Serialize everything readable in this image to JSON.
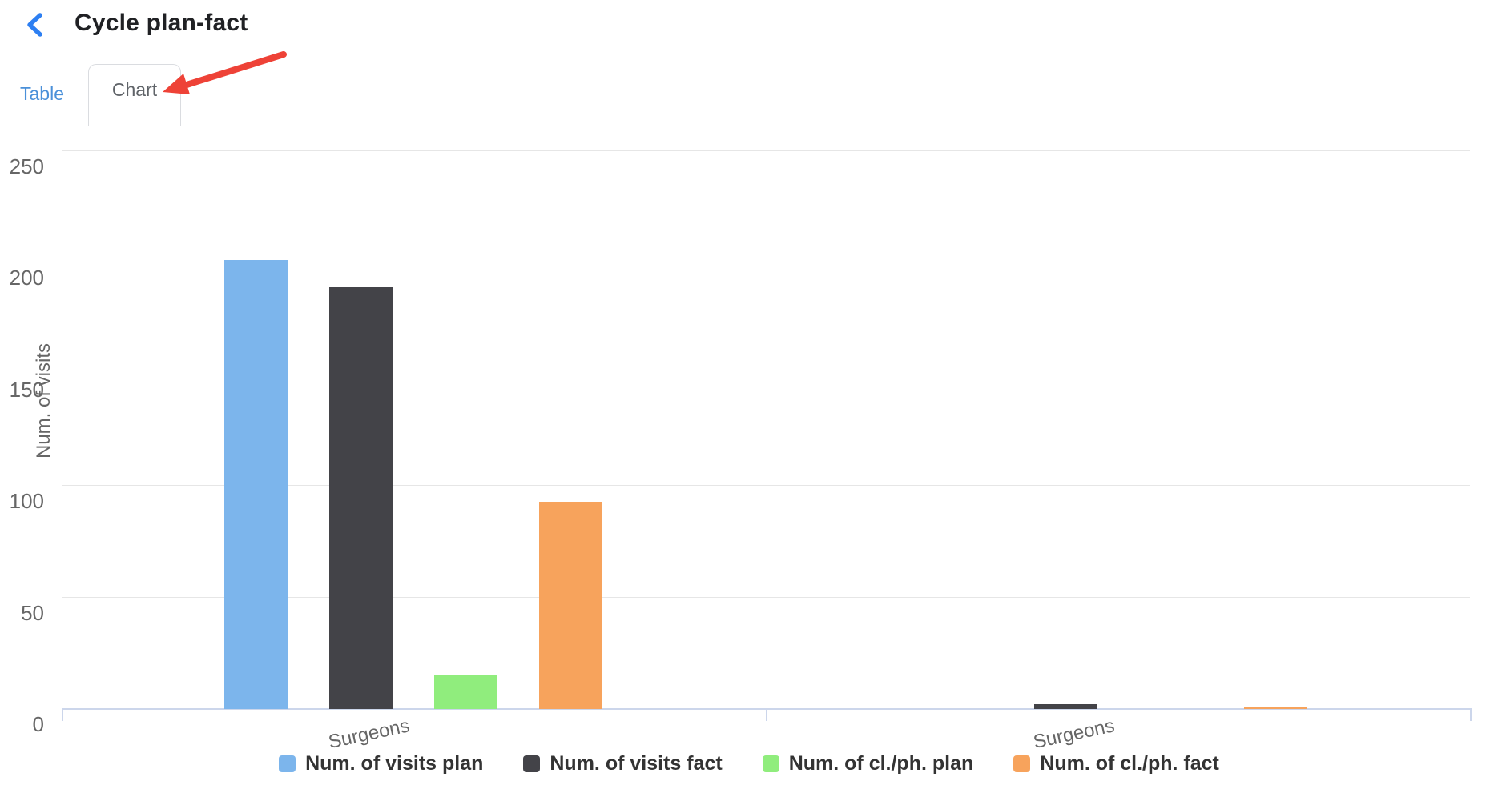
{
  "header": {
    "title": "Cycle plan-fact",
    "back_icon": "chevron-left"
  },
  "tabs": [
    {
      "label": "Table",
      "active": false
    },
    {
      "label": "Chart",
      "active": true
    }
  ],
  "annotation": {
    "type": "arrow",
    "points_at": "Chart tab",
    "color": "#ee4237"
  },
  "chart_data": {
    "type": "bar",
    "categories": [
      "Surgeons",
      "Surgeons"
    ],
    "series": [
      {
        "name": "Num. of visits plan",
        "color": "#7cb5ec",
        "values": [
          201,
          0
        ]
      },
      {
        "name": "Num. of visits fact",
        "color": "#434348",
        "values": [
          189,
          2
        ]
      },
      {
        "name": "Num. of cl./ph. plan",
        "color": "#90ed7d",
        "values": [
          15,
          0
        ]
      },
      {
        "name": "Num. of cl./ph. fact",
        "color": "#f7a35c",
        "values": [
          93,
          1
        ]
      }
    ],
    "title": "",
    "xlabel": "",
    "ylabel": "Num. of visits",
    "yticks": [
      0,
      50,
      100,
      150,
      200,
      250
    ],
    "ylim": [
      0,
      265
    ],
    "grid": true,
    "legend_position": "bottom",
    "gridline_color": "#e6e6e6",
    "axis_line_color": "#ccd6eb",
    "tick_text_color": "#666666",
    "legend_text_color": "#333333"
  },
  "ui_colors": {
    "accent_blue": "#2d7ff2",
    "tab_blue": "#4a90d9",
    "arrow_red": "#ee4237",
    "tab_border": "#dadce0"
  }
}
